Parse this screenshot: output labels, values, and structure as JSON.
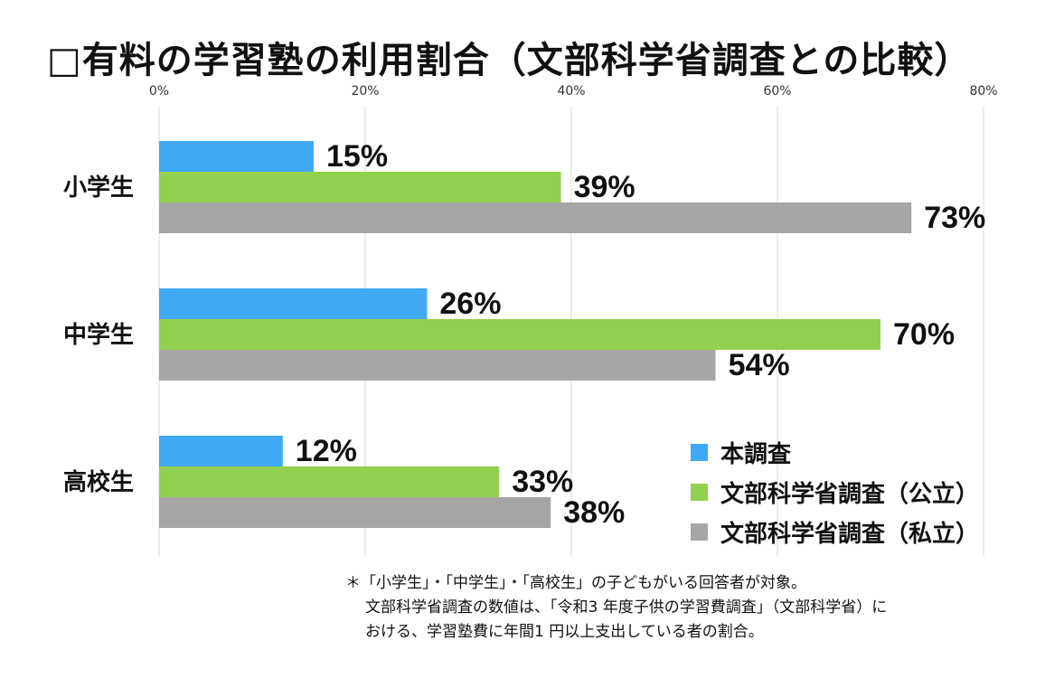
{
  "title": "□有料の学習塾の利用割合（文部科学省調査との比較）",
  "chart_data": {
    "type": "bar",
    "orientation": "horizontal",
    "categories": [
      "小学生",
      "中学生",
      "高校生"
    ],
    "series": [
      {
        "name": "本調査",
        "color": "#3fa9f5",
        "values": [
          15,
          26,
          12
        ]
      },
      {
        "name": "文部科学省調査（公立）",
        "color": "#92d050",
        "values": [
          39,
          70,
          33
        ]
      },
      {
        "name": "文部科学省調査（私立）",
        "color": "#a6a6a6",
        "values": [
          73,
          54,
          38
        ]
      }
    ],
    "xlim": [
      0,
      80
    ],
    "ticks": [
      "0%",
      "20%",
      "40%",
      "60%",
      "80%"
    ],
    "value_suffix": "%",
    "grid": true,
    "legend_position": "bottom-right"
  },
  "note": {
    "line1": "＊「小学生」・「中学生」・「高校生」の子どもがいる回答者が対象。",
    "line2": "文部科学省調査の数値は、「令和3 年度子供の学習費調査」（文部科学省）に",
    "line3": "おける、学習塾費に年間1 円以上支出している者の割合。"
  }
}
